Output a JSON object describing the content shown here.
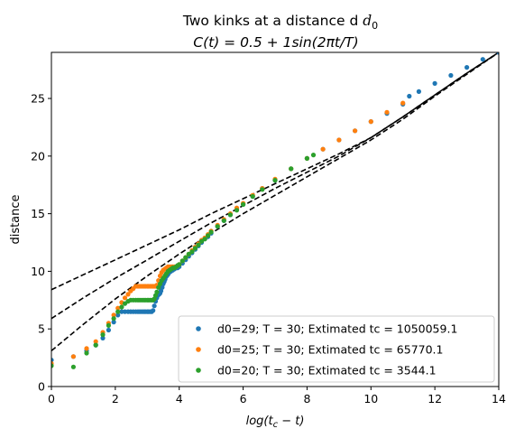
{
  "chart_data": {
    "type": "scatter",
    "title_line1": "Two kinks at a distance d",
    "title_line1_sub": "0",
    "title_line2_parts": [
      "C(t) = 0.5 + 1sin(2",
      "π",
      "t/T)"
    ],
    "xlabel_parts": [
      "log(t",
      "c",
      " − t)"
    ],
    "ylabel": "distance",
    "xlim": [
      0,
      14
    ],
    "ylim": [
      0,
      29
    ],
    "xticks": [
      0,
      2,
      4,
      6,
      8,
      10,
      12,
      14
    ],
    "yticks": [
      0,
      5,
      10,
      15,
      20,
      25
    ],
    "grid": false,
    "legend_position": "lower-right",
    "series": [
      {
        "name": "d0=29; T = 30;  Extimated tc = 1050059.1",
        "color": "#1f77b4",
        "x": [
          0,
          0.69,
          1.1,
          1.39,
          1.61,
          1.79,
          1.95,
          2.08,
          2.2,
          2.3,
          2.4,
          2.48,
          2.56,
          2.64,
          2.71,
          2.77,
          2.83,
          2.89,
          2.94,
          3.0,
          3.04,
          3.09,
          3.14,
          3.18,
          3.22,
          3.26,
          3.3,
          3.33,
          3.37,
          3.4,
          3.43,
          3.47,
          3.5,
          3.53,
          3.56,
          3.58,
          3.61,
          3.64,
          3.66,
          3.69,
          3.74,
          3.8,
          3.85,
          3.9,
          3.95,
          4.0,
          4.1,
          4.2,
          4.3,
          4.4,
          4.5,
          4.6,
          4.7,
          4.8,
          4.9,
          5.0,
          5.2,
          5.4,
          5.6,
          5.8,
          6.0,
          6.3,
          6.6,
          7.0,
          7.5,
          8.0,
          8.5,
          9.0,
          9.5,
          10.0,
          10.5,
          11.0,
          11.2,
          11.5,
          12.0,
          12.5,
          13.0,
          13.5,
          14.0
        ],
        "y": [
          2.3,
          2.6,
          3.1,
          3.6,
          4.2,
          4.9,
          5.6,
          6.2,
          6.5,
          6.5,
          6.5,
          6.5,
          6.5,
          6.5,
          6.5,
          6.5,
          6.5,
          6.5,
          6.5,
          6.5,
          6.5,
          6.5,
          6.5,
          6.6,
          7.0,
          7.4,
          7.7,
          7.9,
          8.0,
          8.1,
          8.3,
          8.6,
          8.9,
          9.1,
          9.3,
          9.5,
          9.6,
          9.7,
          9.8,
          9.9,
          10.0,
          10.1,
          10.2,
          10.3,
          10.3,
          10.4,
          10.7,
          11.0,
          11.3,
          11.6,
          11.9,
          12.2,
          12.5,
          12.8,
          13.0,
          13.3,
          13.9,
          14.4,
          14.9,
          15.4,
          15.8,
          16.5,
          17.2,
          17.9,
          18.9,
          19.8,
          20.6,
          21.4,
          22.2,
          23.0,
          23.7,
          24.5,
          25.2,
          25.6,
          26.3,
          27.0,
          27.7,
          28.4,
          29.0
        ]
      },
      {
        "name": "d0=25; T = 30;  Extimated tc = 65770.1",
        "color": "#ff7f0e",
        "x": [
          0,
          0.69,
          1.1,
          1.39,
          1.61,
          1.79,
          1.95,
          2.08,
          2.2,
          2.3,
          2.4,
          2.48,
          2.56,
          2.64,
          2.71,
          2.77,
          2.83,
          2.89,
          2.94,
          3.0,
          3.04,
          3.09,
          3.14,
          3.18,
          3.22,
          3.26,
          3.3,
          3.35,
          3.4,
          3.45,
          3.5,
          3.55,
          3.6,
          3.65,
          3.7,
          3.75,
          3.8,
          3.85,
          3.9,
          3.95,
          4.0,
          4.1,
          4.2,
          4.3,
          4.4,
          4.5,
          4.6,
          4.7,
          4.8,
          4.9,
          5.0,
          5.2,
          5.4,
          5.6,
          5.8,
          6.0,
          6.3,
          6.6,
          7.0,
          7.5,
          8.0,
          8.5,
          9.0,
          9.5,
          10.0,
          10.5,
          11.0
        ],
        "y": [
          2.0,
          2.6,
          3.3,
          3.9,
          4.7,
          5.5,
          6.2,
          6.8,
          7.3,
          7.7,
          8.0,
          8.3,
          8.5,
          8.7,
          8.7,
          8.7,
          8.7,
          8.7,
          8.7,
          8.7,
          8.7,
          8.7,
          8.7,
          8.7,
          8.7,
          8.7,
          8.8,
          9.2,
          9.6,
          9.9,
          10.1,
          10.2,
          10.3,
          10.4,
          10.4,
          10.4,
          10.4,
          10.4,
          10.4,
          10.5,
          10.6,
          10.9,
          11.2,
          11.5,
          11.8,
          12.1,
          12.4,
          12.7,
          12.9,
          13.2,
          13.5,
          14.0,
          14.5,
          15.0,
          15.5,
          15.9,
          16.6,
          17.2,
          18.0,
          18.9,
          19.8,
          20.6,
          21.4,
          22.2,
          23.0,
          23.8,
          24.6
        ]
      },
      {
        "name": "d0=20; T = 30;  Extimated tc = 3544.1",
        "color": "#2ca02c",
        "x": [
          0,
          0.69,
          1.1,
          1.39,
          1.61,
          1.79,
          1.95,
          2.08,
          2.2,
          2.3,
          2.4,
          2.48,
          2.56,
          2.64,
          2.71,
          2.77,
          2.83,
          2.89,
          2.94,
          3.0,
          3.04,
          3.09,
          3.14,
          3.18,
          3.22,
          3.26,
          3.3,
          3.35,
          3.4,
          3.45,
          3.5,
          3.55,
          3.6,
          3.65,
          3.7,
          3.75,
          3.8,
          3.85,
          3.9,
          3.95,
          4.0,
          4.1,
          4.2,
          4.3,
          4.4,
          4.5,
          4.6,
          4.7,
          4.8,
          4.9,
          5.0,
          5.2,
          5.4,
          5.6,
          5.8,
          6.0,
          6.3,
          6.6,
          7.0,
          7.5,
          8.0,
          8.2
        ],
        "y": [
          1.8,
          1.7,
          2.9,
          3.6,
          4.5,
          5.3,
          5.9,
          6.5,
          6.9,
          7.2,
          7.4,
          7.5,
          7.5,
          7.5,
          7.5,
          7.5,
          7.5,
          7.5,
          7.5,
          7.5,
          7.5,
          7.5,
          7.5,
          7.5,
          7.6,
          7.9,
          8.2,
          8.6,
          8.9,
          9.2,
          9.4,
          9.6,
          9.8,
          10.0,
          10.1,
          10.2,
          10.3,
          10.3,
          10.4,
          10.5,
          10.6,
          10.9,
          11.2,
          11.5,
          11.7,
          12.0,
          12.3,
          12.6,
          12.8,
          13.1,
          13.4,
          13.9,
          14.4,
          14.9,
          15.3,
          15.8,
          16.5,
          17.1,
          17.9,
          18.9,
          19.8,
          20.1
        ]
      }
    ],
    "fit_curves": [
      {
        "x": [
          0,
          1,
          2,
          3,
          4,
          5,
          6,
          7,
          8,
          9,
          10,
          11,
          12,
          13,
          14
        ],
        "y": [
          8.4,
          9.7,
          11.0,
          12.3,
          13.6,
          15.0,
          16.3,
          17.6,
          18.9,
          20.2,
          21.6,
          23.4,
          25.3,
          27.2,
          29.0
        ],
        "color": "#000000"
      },
      {
        "x": [
          0,
          1,
          2,
          3,
          4,
          5,
          6,
          7,
          8,
          9,
          10,
          11,
          12,
          13,
          14
        ],
        "y": [
          5.9,
          7.7,
          9.4,
          11.0,
          12.6,
          14.2,
          15.7,
          17.2,
          18.6,
          20.0,
          21.6,
          23.4,
          25.3,
          27.2,
          29.0
        ],
        "color": "#000000"
      },
      {
        "x": [
          0,
          1,
          2,
          3,
          4,
          5,
          6,
          7,
          8,
          9,
          10,
          11,
          12,
          13,
          14
        ],
        "y": [
          3.1,
          5.4,
          7.6,
          9.6,
          11.5,
          13.3,
          15.0,
          16.6,
          18.2,
          19.8,
          21.4,
          23.2,
          25.2,
          27.1,
          29.0
        ],
        "color": "#000000"
      }
    ]
  }
}
